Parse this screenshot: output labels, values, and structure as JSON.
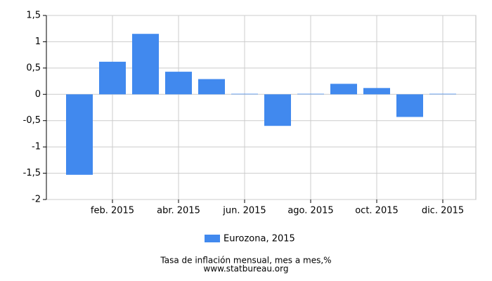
{
  "chart_data": {
    "type": "bar",
    "title": "Tasa de inflación mensual, mes a mes,%",
    "source": "www.statbureau.org",
    "categories": [
      null,
      "feb. 2015",
      null,
      "abr. 2015",
      null,
      "jun. 2015",
      null,
      "ago. 2015",
      null,
      "oct. 2015",
      null,
      "dic. 2015"
    ],
    "series": [
      {
        "name": "Eurozona, 2015",
        "color": "#4189ee",
        "values": [
          -1.53,
          0.62,
          1.15,
          0.43,
          0.29,
          0.01,
          -0.6,
          0.01,
          0.2,
          0.12,
          -0.43,
          0.01
        ]
      }
    ],
    "ylim": [
      -2,
      1.5
    ],
    "yticks": [
      -2,
      {
        "value": -1.5,
        "label": "-1,5"
      },
      -1,
      {
        "value": -0.5,
        "label": "-0,5"
      },
      0,
      {
        "value": 0.5,
        "label": "0,5"
      },
      1,
      {
        "value": 1.5,
        "label": "1,5"
      }
    ],
    "grid": true
  }
}
